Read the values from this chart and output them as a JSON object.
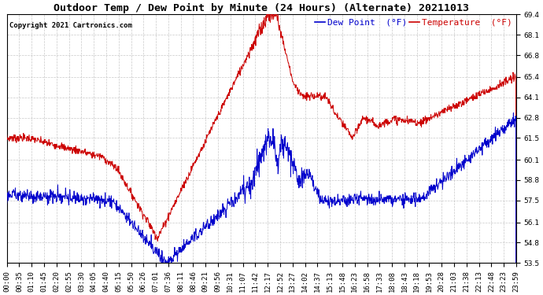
{
  "title": "Outdoor Temp / Dew Point by Minute (24 Hours) (Alternate) 20211013",
  "copyright": "Copyright 2021 Cartronics.com",
  "legend_dew": "Dew Point  (°F)",
  "legend_temp": "Temperature  (°F)",
  "ylim_min": 53.5,
  "ylim_max": 69.4,
  "yticks": [
    53.5,
    54.8,
    56.1,
    57.5,
    58.8,
    60.1,
    61.5,
    62.8,
    64.1,
    65.4,
    66.8,
    68.1,
    69.4
  ],
  "x_tick_labels": [
    "00:00",
    "00:35",
    "01:10",
    "01:45",
    "02:20",
    "02:55",
    "03:30",
    "04:05",
    "04:40",
    "05:15",
    "05:50",
    "06:26",
    "07:01",
    "07:36",
    "08:11",
    "08:46",
    "09:21",
    "09:56",
    "10:31",
    "11:07",
    "11:42",
    "12:17",
    "12:52",
    "13:27",
    "14:02",
    "14:37",
    "15:13",
    "15:48",
    "16:23",
    "16:58",
    "17:33",
    "18:08",
    "18:43",
    "19:18",
    "19:53",
    "20:28",
    "21:03",
    "21:38",
    "22:13",
    "22:48",
    "23:23",
    "23:59"
  ],
  "color_temp": "#cc0000",
  "color_dew": "#0000cc",
  "color_grid": "#bbbbbb",
  "bg_color": "#ffffff",
  "title_fontsize": 9.5,
  "label_fontsize": 6.5,
  "copyright_fontsize": 6.5,
  "legend_fontsize": 8
}
